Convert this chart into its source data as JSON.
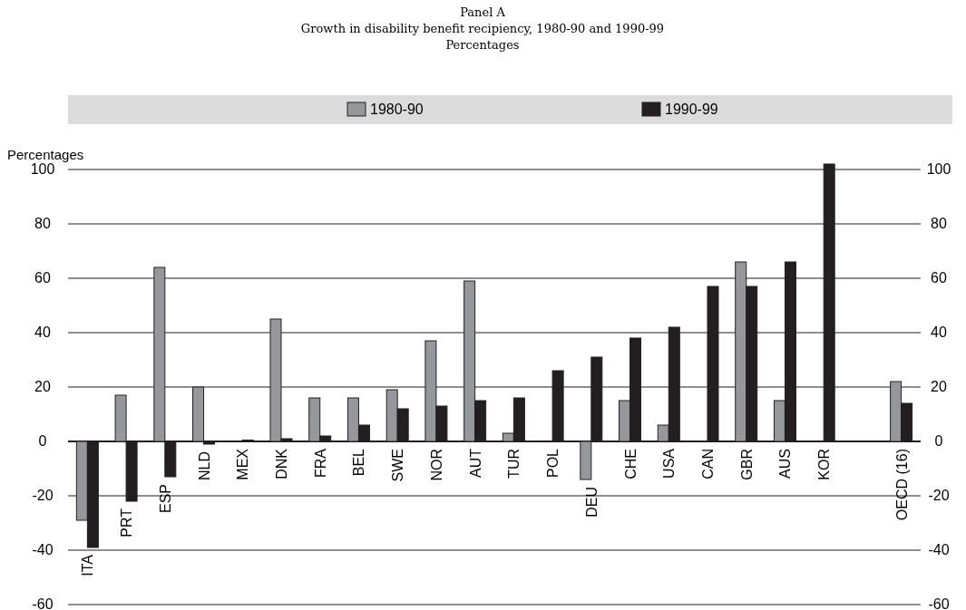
{
  "chart_data": {
    "type": "bar",
    "title": "Panel A",
    "subtitle": "Growth in disability benefit recipiency, 1980-90 and 1990-99\nPercentages",
    "ylabel": "Percentages",
    "categories": [
      "ITA",
      "PRT",
      "ESP",
      "NLD",
      "MEX",
      "DNK",
      "FRA",
      "BEL",
      "SWE",
      "NOR",
      "AUT",
      "TUR",
      "POL",
      "DEU",
      "CHE",
      "USA",
      "CAN",
      "GBR",
      "AUS",
      "KOR",
      null,
      "OECD (16)"
    ],
    "series": [
      {
        "name": "1980-90",
        "color": "#96979b",
        "values": [
          -29,
          17,
          64,
          20,
          null,
          45,
          16,
          16,
          19,
          37,
          59,
          3,
          null,
          -14,
          15,
          6,
          null,
          66,
          15,
          null,
          null,
          22
        ]
      },
      {
        "name": "1990-99",
        "color": "#231f20",
        "values": [
          -39,
          -22,
          -13,
          -1,
          0.5,
          1,
          2,
          6,
          12,
          13,
          15,
          16,
          26,
          31,
          38,
          42,
          57,
          57,
          66,
          102,
          null,
          14
        ]
      }
    ],
    "ylim": [
      -60,
      102
    ],
    "yticks": [
      -60,
      -40,
      -20,
      0,
      20,
      40,
      60,
      80,
      100
    ],
    "y2lim": [
      -60,
      102
    ],
    "y2ticks": [
      -60,
      -40,
      -20,
      0,
      20,
      40,
      60,
      80,
      100
    ],
    "grid": "y",
    "legend": "top"
  }
}
